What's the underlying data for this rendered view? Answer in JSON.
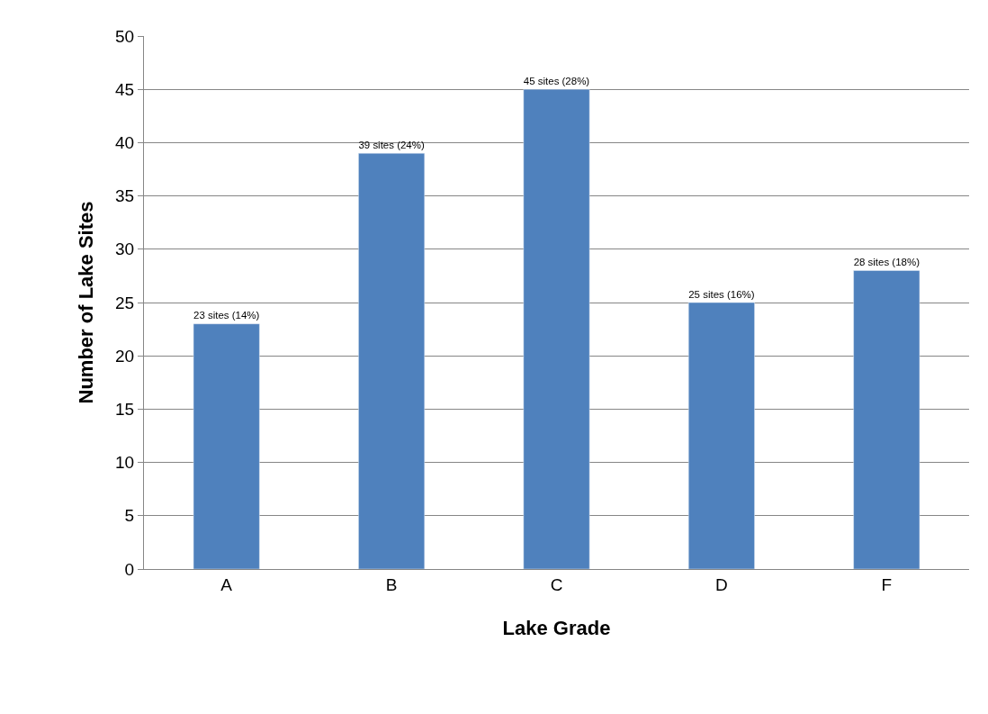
{
  "chart_data": {
    "type": "bar",
    "xlabel": "Lake Grade",
    "ylabel": "Number of Lake Sites",
    "categories": [
      "A",
      "B",
      "C",
      "D",
      "F"
    ],
    "values": [
      23,
      39,
      45,
      25,
      28
    ],
    "value_labels": [
      "23 sites (14%)",
      "39 sites (24%)",
      "45 sites (28%)",
      "25 sites (16%)",
      "28 sites (18%)"
    ],
    "color": "#4f81bd",
    "ylim": [
      0,
      50
    ],
    "yticks": [
      0,
      5,
      10,
      15,
      20,
      25,
      30,
      35,
      40,
      45,
      50
    ],
    "grid": "y",
    "legend": false
  }
}
